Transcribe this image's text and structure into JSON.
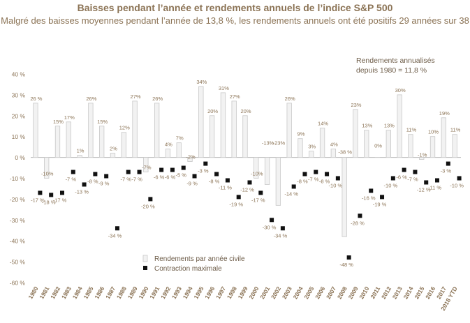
{
  "chart_data": {
    "type": "bar",
    "title": "Baisses pendant l’année et rendements annuels de l’indice S&P 500",
    "subtitle": "Malgré des baisses moyennes pendant l’année de 13,8 %, les rendements annuels ont été positifs 29 années sur 38",
    "annotation_line1": "Rendements annualisés",
    "annotation_line2": "depuis 1980 = 11,8 %",
    "ylim": [
      -60,
      40
    ],
    "yticks": [
      40,
      30,
      20,
      10,
      0,
      -10,
      -20,
      -30,
      -40,
      -50,
      -60
    ],
    "ytick_labels": [
      "40 %",
      "30 %",
      "20 %",
      "10 %",
      "0 %",
      "-10 %",
      "-20 %",
      "-30 %",
      "-40 %",
      "-50 %",
      "-60 %"
    ],
    "categories": [
      "1980",
      "1981",
      "1982",
      "1983",
      "1984",
      "1985",
      "1986",
      "1987",
      "1988",
      "1989",
      "1990",
      "1991",
      "1992",
      "1993",
      "1994",
      "1995",
      "1996",
      "1997",
      "1998",
      "1999",
      "2000",
      "2001",
      "2002",
      "2003",
      "2004",
      "2005",
      "2006",
      "2007",
      "2008",
      "2009",
      "2010",
      "2011",
      "2012",
      "2013",
      "2014",
      "2015",
      "2016",
      "2017",
      "2018 YTD"
    ],
    "series": [
      {
        "name": "Rendements par année civile",
        "color": "#f2f2f2",
        "stroke": "#c8c8c8",
        "values": [
          26,
          -10,
          15,
          17,
          1,
          26,
          15,
          2,
          12,
          27,
          -7,
          26,
          4,
          7,
          -2,
          34,
          20,
          31,
          27,
          20,
          -10,
          -13,
          -23,
          26,
          9,
          3,
          14,
          4,
          -38,
          23,
          13,
          0,
          13,
          30,
          11,
          -1,
          10,
          19,
          11
        ],
        "labels": [
          "26 %",
          "-10%",
          "15%",
          "17%",
          "1%",
          "26%",
          "15%",
          "2%",
          "12%",
          "27%",
          "-7%",
          "26%",
          "4%",
          "7%",
          "-2%",
          "34%",
          "20%",
          "31%",
          "27%",
          "20%",
          "-10%",
          "-13%",
          "-23%",
          "26%",
          "9%",
          "3%",
          "14%",
          "4%",
          "-38 %",
          "23%",
          "13%",
          "0%",
          "13%",
          "30%",
          "11%",
          "-1%",
          "10%",
          "19%",
          "11%"
        ]
      },
      {
        "name": "Contraction maximale",
        "color": "#111111",
        "values": [
          -17,
          -18,
          -17,
          -7,
          -13,
          -8,
          -9,
          -34,
          -7,
          -7,
          -20,
          -6,
          -6,
          -5,
          -9,
          -3,
          -8,
          -11,
          -19,
          -12,
          -17,
          -30,
          -34,
          -14,
          -8,
          -7,
          -8,
          -10,
          -48,
          -28,
          -16,
          -19,
          -10,
          -6,
          -7,
          -12,
          -11,
          -3,
          -10
        ],
        "labels": [
          "-17 %",
          "-18 %",
          "-17 %",
          "-7 %",
          "-13 %",
          "-8 %",
          "-9 %",
          "-34 %",
          "-7 %",
          "-7 %",
          "-20 %",
          "-6 %",
          "-6 %",
          "-5 %",
          "-9 %",
          "-3 %",
          "-8 %",
          "-11 %",
          "-19 %",
          "-12 %",
          "-17 %",
          "-30 %",
          "-34 %",
          "-14 %",
          "-8 %",
          "-7 %",
          "-8 %",
          "-10 %",
          "-48 %",
          "-28 %",
          "-16 %",
          "-19 %",
          "-10 %",
          "-6 %",
          "-7 %",
          "-12 %",
          "-11 %",
          "-3 %",
          "-10 %"
        ]
      }
    ],
    "legend_position": "bottom-center"
  }
}
